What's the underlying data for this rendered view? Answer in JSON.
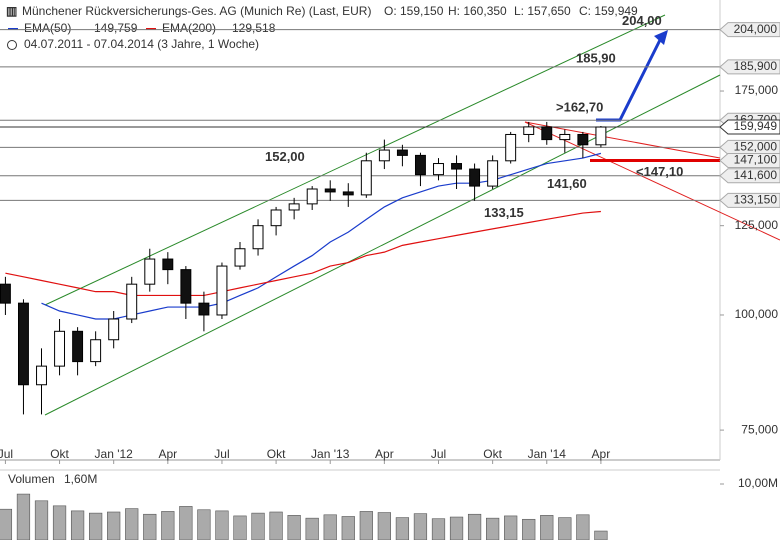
{
  "chart_data": {
    "type": "candlestick",
    "title": "Münchener Rückversicherungs-Ges. AG (Munich Re) (Last, EUR)",
    "quote": [
      "O: 159,150",
      "H: 160,350",
      "L: 157,650",
      "C: 159,949"
    ],
    "period": "04.07.2011 - 07.04.2014 (3 Jahre, 1 Woche)",
    "x": [
      0,
      1,
      2,
      3,
      4,
      5,
      6,
      7,
      8,
      9,
      10,
      11,
      12,
      13,
      14,
      15,
      16,
      17,
      18,
      19,
      20,
      21,
      22,
      23,
      24,
      25,
      26,
      27,
      28,
      29,
      30,
      31,
      32,
      33
    ],
    "open": [
      108,
      103,
      84,
      88,
      96,
      89,
      94,
      99,
      108,
      115,
      112,
      103,
      100,
      113,
      118,
      125,
      130,
      132,
      137,
      136,
      135,
      147,
      151,
      149,
      142,
      146,
      144,
      138,
      147,
      157,
      160,
      155,
      157,
      153
    ],
    "high": [
      110,
      104,
      92,
      99,
      97,
      96,
      101,
      110,
      118,
      117,
      113,
      106,
      114,
      120,
      127,
      131,
      134,
      138,
      140,
      139,
      150,
      155,
      153,
      150,
      148,
      149,
      146,
      149,
      158,
      162,
      162,
      159,
      158,
      160.35
    ],
    "low": [
      100,
      78,
      78,
      86,
      86,
      88,
      92,
      98,
      106,
      108,
      99,
      96,
      99,
      112,
      116,
      122,
      127,
      130,
      133,
      131,
      134,
      144,
      145,
      138,
      140,
      137,
      133,
      137,
      146,
      154,
      153,
      150,
      148,
      152
    ],
    "close": [
      103,
      84,
      88,
      96,
      89,
      94,
      99,
      108,
      115,
      112,
      103,
      100,
      113,
      118,
      125,
      130,
      132,
      137,
      136,
      135,
      147,
      151,
      149,
      142,
      146,
      144,
      138,
      147,
      157,
      160,
      155,
      157,
      153,
      159.949
    ],
    "series": [
      {
        "name": "EMA(50)",
        "value_label": "149,759",
        "color": "#1a3ccc",
        "values": [
          null,
          null,
          103,
          101,
          100,
          99,
          99,
          100,
          101,
          102,
          102,
          102,
          103,
          105,
          107,
          110,
          113,
          116,
          120,
          123,
          127,
          131,
          134,
          136,
          138,
          139,
          139,
          140,
          142,
          144,
          146,
          147,
          148,
          149.759
        ]
      },
      {
        "name": "EMA(200)",
        "value_label": "129,518",
        "color": "#e01010",
        "values": [
          111,
          110,
          109,
          108,
          107,
          106,
          106,
          105,
          105,
          105,
          105,
          105,
          106,
          107,
          108,
          109,
          110,
          111,
          113,
          114,
          116,
          117,
          119,
          120,
          121,
          122,
          123,
          124,
          125,
          126,
          127,
          128,
          129,
          129.518
        ]
      }
    ],
    "ylim": [
      69.6,
      219.7
    ],
    "log": true,
    "yticks": [
      {
        "value": 75,
        "label": "75,000"
      },
      {
        "value": 100,
        "label": "100,000"
      },
      {
        "value": 125,
        "label": "125,000"
      },
      {
        "value": 175,
        "label": "175,000"
      }
    ],
    "levels": [
      {
        "value": 204,
        "label": "204,000",
        "color": "#777777"
      },
      {
        "value": 185.9,
        "label": "185,900",
        "color": "#777777"
      },
      {
        "value": 162.7,
        "label": "162,700",
        "color": "#777777"
      },
      {
        "value": 159.949,
        "label": "159,949",
        "color": "#333333"
      },
      {
        "value": 152,
        "label": "152,000",
        "color": "#777777"
      },
      {
        "value": 147.1,
        "label": "147,100",
        "color": "#e00000"
      },
      {
        "value": 141.6,
        "label": "141,600",
        "color": "#777777"
      },
      {
        "value": 133.15,
        "label": "133,150",
        "color": "#777777"
      }
    ],
    "annotations": [
      {
        "value": 152,
        "label": "152,00",
        "color": "#777777"
      },
      {
        "value": 141.6,
        "label": "141,60",
        "color": "#777777"
      },
      {
        "value": 133.15,
        "label": "133,15",
        "color": "#777777"
      },
      {
        "value": 162.7,
        "label": ">162,70",
        "color": "#1a3ccc"
      },
      {
        "value": 185.9,
        "label": "185,90",
        "color": "#1a3ccc"
      },
      {
        "value": 204,
        "label": "204,00",
        "color": "#1a3ccc"
      },
      {
        "value": 147.1,
        "label": "<147,10",
        "color": "#e00000"
      }
    ],
    "xlim": [
      -0.3,
      39.6
    ],
    "xticks": [
      {
        "value": 0,
        "label": "Jul"
      },
      {
        "value": 3,
        "label": "Okt"
      },
      {
        "value": 6,
        "label": "Jan '12"
      },
      {
        "value": 9,
        "label": "Apr"
      },
      {
        "value": 12,
        "label": "Jul"
      },
      {
        "value": 15,
        "label": "Okt"
      },
      {
        "value": 18,
        "label": "Jan '13"
      },
      {
        "value": 21,
        "label": "Apr"
      },
      {
        "value": 24,
        "label": "Jul"
      },
      {
        "value": 27,
        "label": "Okt"
      },
      {
        "value": 30,
        "label": "Jan '14"
      },
      {
        "value": 33,
        "label": "Apr"
      }
    ],
    "volume": {
      "name": "Volumen",
      "last_label": "1,60M",
      "values": [
        5.5,
        8.2,
        7.0,
        6.1,
        5.2,
        4.8,
        5.0,
        5.6,
        4.6,
        5.1,
        6.0,
        5.4,
        5.2,
        4.3,
        4.8,
        5.0,
        4.4,
        3.9,
        4.5,
        4.2,
        5.1,
        4.9,
        4.0,
        4.7,
        3.8,
        4.1,
        4.6,
        3.9,
        4.3,
        3.7,
        4.4,
        4.0,
        4.5,
        1.6
      ],
      "ylim": [
        0,
        12.5
      ],
      "yticks": [
        {
          "value": 10,
          "label": "10,00M"
        }
      ]
    }
  }
}
